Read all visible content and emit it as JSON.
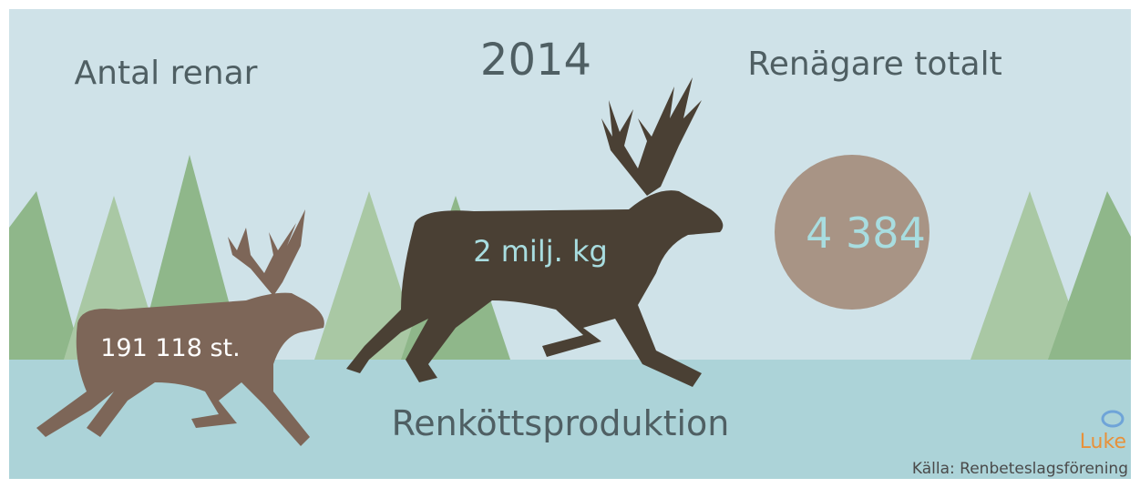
{
  "year": "2014",
  "stats": [
    {
      "label": "Antal renar",
      "value": "191 118 st."
    },
    {
      "label": "Renköttsproduktion",
      "value": "2 milj. kg"
    },
    {
      "label": "Renägare totalt",
      "value": "4 384"
    }
  ],
  "logo": "Luke",
  "source": "Källa: Renbeteslagsförening"
}
